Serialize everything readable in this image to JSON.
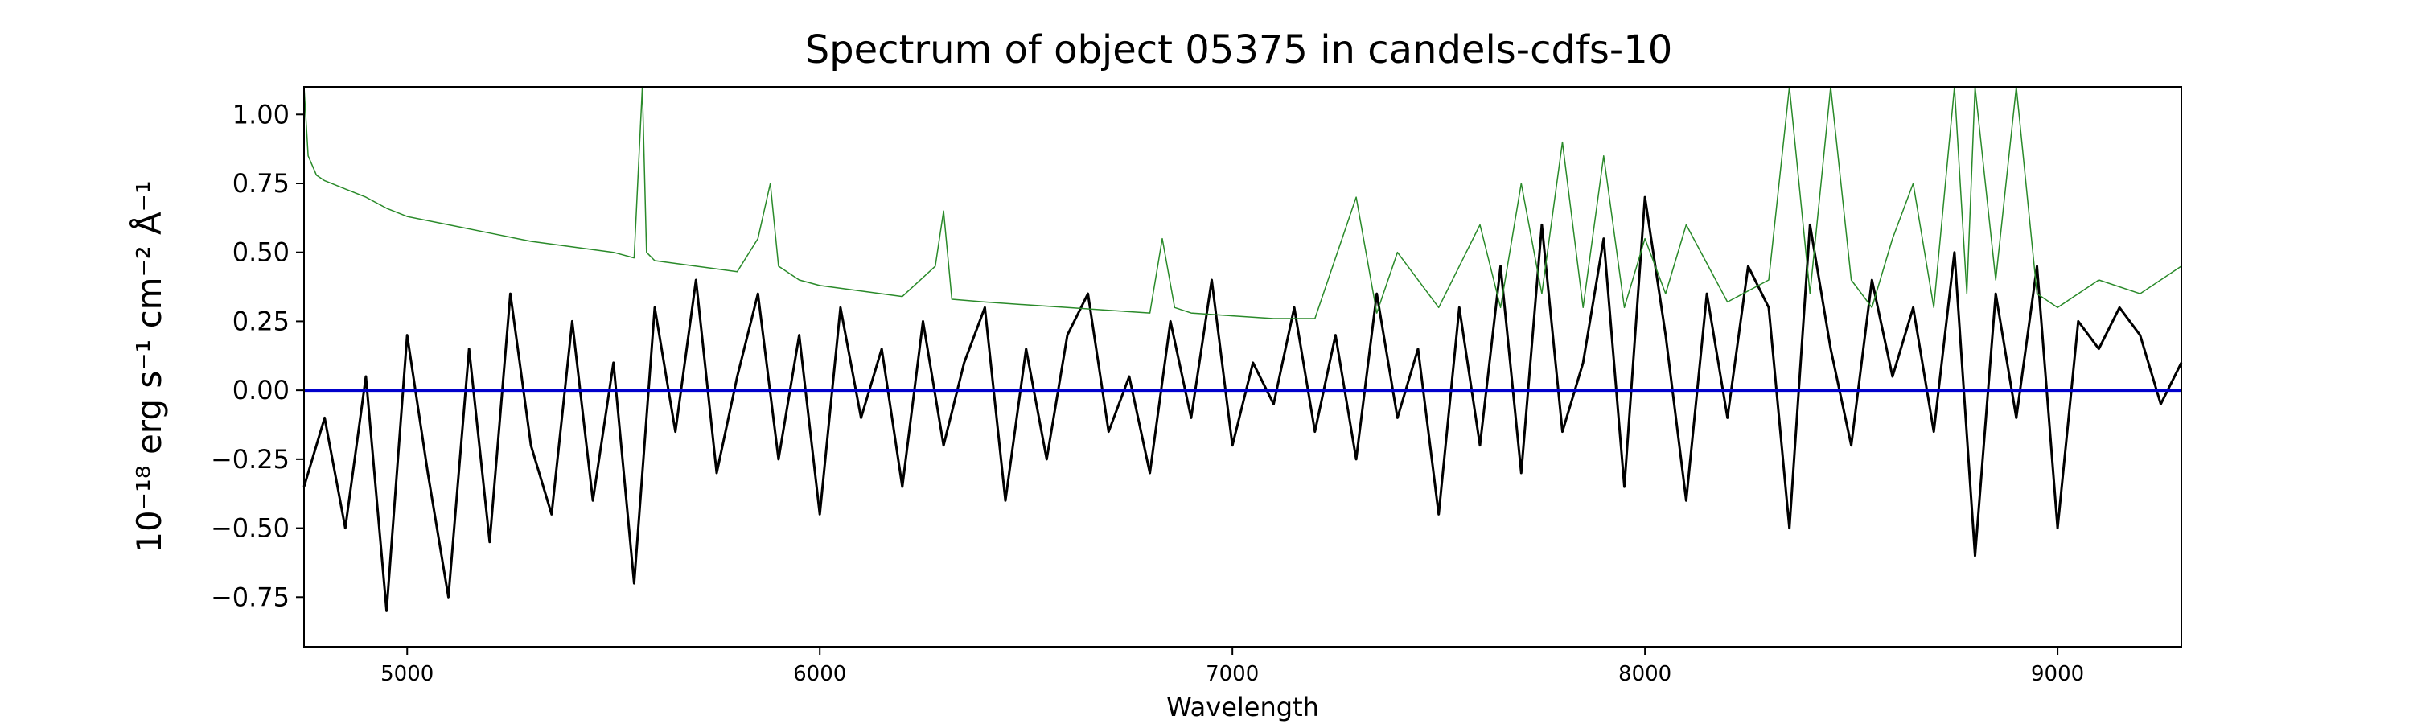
{
  "chart_data": {
    "type": "line",
    "title": "Spectrum of object 05375 in candels-cdfs-10",
    "xlabel": "Wavelength",
    "ylabel": "10⁻¹⁸ erg s⁻¹ cm⁻² Å⁻¹",
    "xlim": [
      4750,
      9300
    ],
    "ylim": [
      -0.93,
      1.1
    ],
    "grid": false,
    "legend": "none",
    "xticks": [
      5000,
      6000,
      7000,
      8000,
      9000
    ],
    "xtick_labels": [
      "5000",
      "6000",
      "7000",
      "8000",
      "9000"
    ],
    "yticks": [
      -0.75,
      -0.5,
      -0.25,
      0.0,
      0.25,
      0.5,
      0.75,
      1.0
    ],
    "ytick_labels": [
      "−0.75",
      "−0.50",
      "−0.25",
      "0.00",
      "0.25",
      "0.50",
      "0.75",
      "1.00"
    ],
    "series": [
      {
        "color": "#000000",
        "x": [
          4750,
          4800,
          4850,
          4900,
          4950,
          5000,
          5050,
          5100,
          5150,
          5200,
          5250,
          5300,
          5350,
          5400,
          5450,
          5500,
          5550,
          5600,
          5650,
          5700,
          5750,
          5800,
          5850,
          5900,
          5950,
          6000,
          6050,
          6100,
          6150,
          6200,
          6250,
          6300,
          6350,
          6400,
          6450,
          6500,
          6550,
          6600,
          6650,
          6700,
          6750,
          6800,
          6850,
          6900,
          6950,
          7000,
          7050,
          7100,
          7150,
          7200,
          7250,
          7300,
          7350,
          7400,
          7450,
          7500,
          7550,
          7600,
          7650,
          7700,
          7750,
          7800,
          7850,
          7900,
          7950,
          8000,
          8050,
          8100,
          8150,
          8200,
          8250,
          8300,
          8350,
          8400,
          8450,
          8500,
          8550,
          8600,
          8650,
          8700,
          8750,
          8800,
          8850,
          8900,
          8950,
          9000,
          9050,
          9100,
          9150,
          9200,
          9250,
          9300
        ],
        "y": [
          -0.35,
          -0.1,
          -0.5,
          0.05,
          -0.8,
          0.2,
          -0.3,
          -0.75,
          0.15,
          -0.55,
          0.35,
          -0.2,
          -0.45,
          0.25,
          -0.4,
          0.1,
          -0.7,
          0.3,
          -0.15,
          0.4,
          -0.3,
          0.05,
          0.35,
          -0.25,
          0.2,
          -0.45,
          0.3,
          -0.1,
          0.15,
          -0.35,
          0.25,
          -0.2,
          0.1,
          0.3,
          -0.4,
          0.15,
          -0.25,
          0.2,
          0.35,
          -0.15,
          0.05,
          -0.3,
          0.25,
          -0.1,
          0.4,
          -0.2,
          0.1,
          -0.05,
          0.3,
          -0.15,
          0.2,
          -0.25,
          0.35,
          -0.1,
          0.15,
          -0.45,
          0.3,
          -0.2,
          0.45,
          -0.3,
          0.6,
          -0.15,
          0.1,
          0.55,
          -0.35,
          0.7,
          0.2,
          -0.4,
          0.35,
          -0.1,
          0.45,
          0.3,
          -0.5,
          0.6,
          0.15,
          -0.2,
          0.4,
          0.05,
          0.3,
          -0.15,
          0.5,
          -0.6,
          0.35,
          -0.1,
          0.45,
          -0.5,
          0.25,
          0.15,
          0.3,
          0.2,
          -0.05,
          0.1
        ]
      },
      {
        "color": "#2a8a2a",
        "x": [
          4750,
          4760,
          4780,
          4800,
          4850,
          4900,
          4950,
          5000,
          5100,
          5200,
          5300,
          5400,
          5500,
          5550,
          5570,
          5580,
          5600,
          5700,
          5800,
          5850,
          5880,
          5900,
          5950,
          6000,
          6100,
          6200,
          6280,
          6300,
          6320,
          6400,
          6500,
          6600,
          6700,
          6800,
          6830,
          6860,
          6900,
          7000,
          7100,
          7200,
          7300,
          7350,
          7400,
          7500,
          7550,
          7600,
          7650,
          7700,
          7750,
          7800,
          7850,
          7900,
          7950,
          8000,
          8050,
          8100,
          8200,
          8300,
          8350,
          8400,
          8450,
          8500,
          8550,
          8600,
          8650,
          8700,
          8750,
          8780,
          8800,
          8850,
          8900,
          8950,
          9000,
          9100,
          9200,
          9300
        ],
        "y": [
          1.1,
          0.85,
          0.78,
          0.76,
          0.73,
          0.7,
          0.66,
          0.63,
          0.6,
          0.57,
          0.54,
          0.52,
          0.5,
          0.48,
          1.1,
          0.5,
          0.47,
          0.45,
          0.43,
          0.55,
          0.75,
          0.45,
          0.4,
          0.38,
          0.36,
          0.34,
          0.45,
          0.65,
          0.33,
          0.32,
          0.31,
          0.3,
          0.29,
          0.28,
          0.55,
          0.3,
          0.28,
          0.27,
          0.26,
          0.26,
          0.7,
          0.28,
          0.5,
          0.3,
          0.45,
          0.6,
          0.3,
          0.75,
          0.35,
          0.9,
          0.3,
          0.85,
          0.3,
          0.55,
          0.35,
          0.6,
          0.32,
          0.4,
          1.1,
          0.35,
          1.1,
          0.4,
          0.3,
          0.55,
          0.75,
          0.3,
          1.1,
          0.35,
          1.1,
          0.4,
          1.1,
          0.35,
          0.3,
          0.4,
          0.35,
          0.45
        ]
      },
      {
        "color": "#0000cc",
        "x": [
          4750,
          9300
        ],
        "y": [
          0.0,
          0.0
        ]
      }
    ]
  }
}
